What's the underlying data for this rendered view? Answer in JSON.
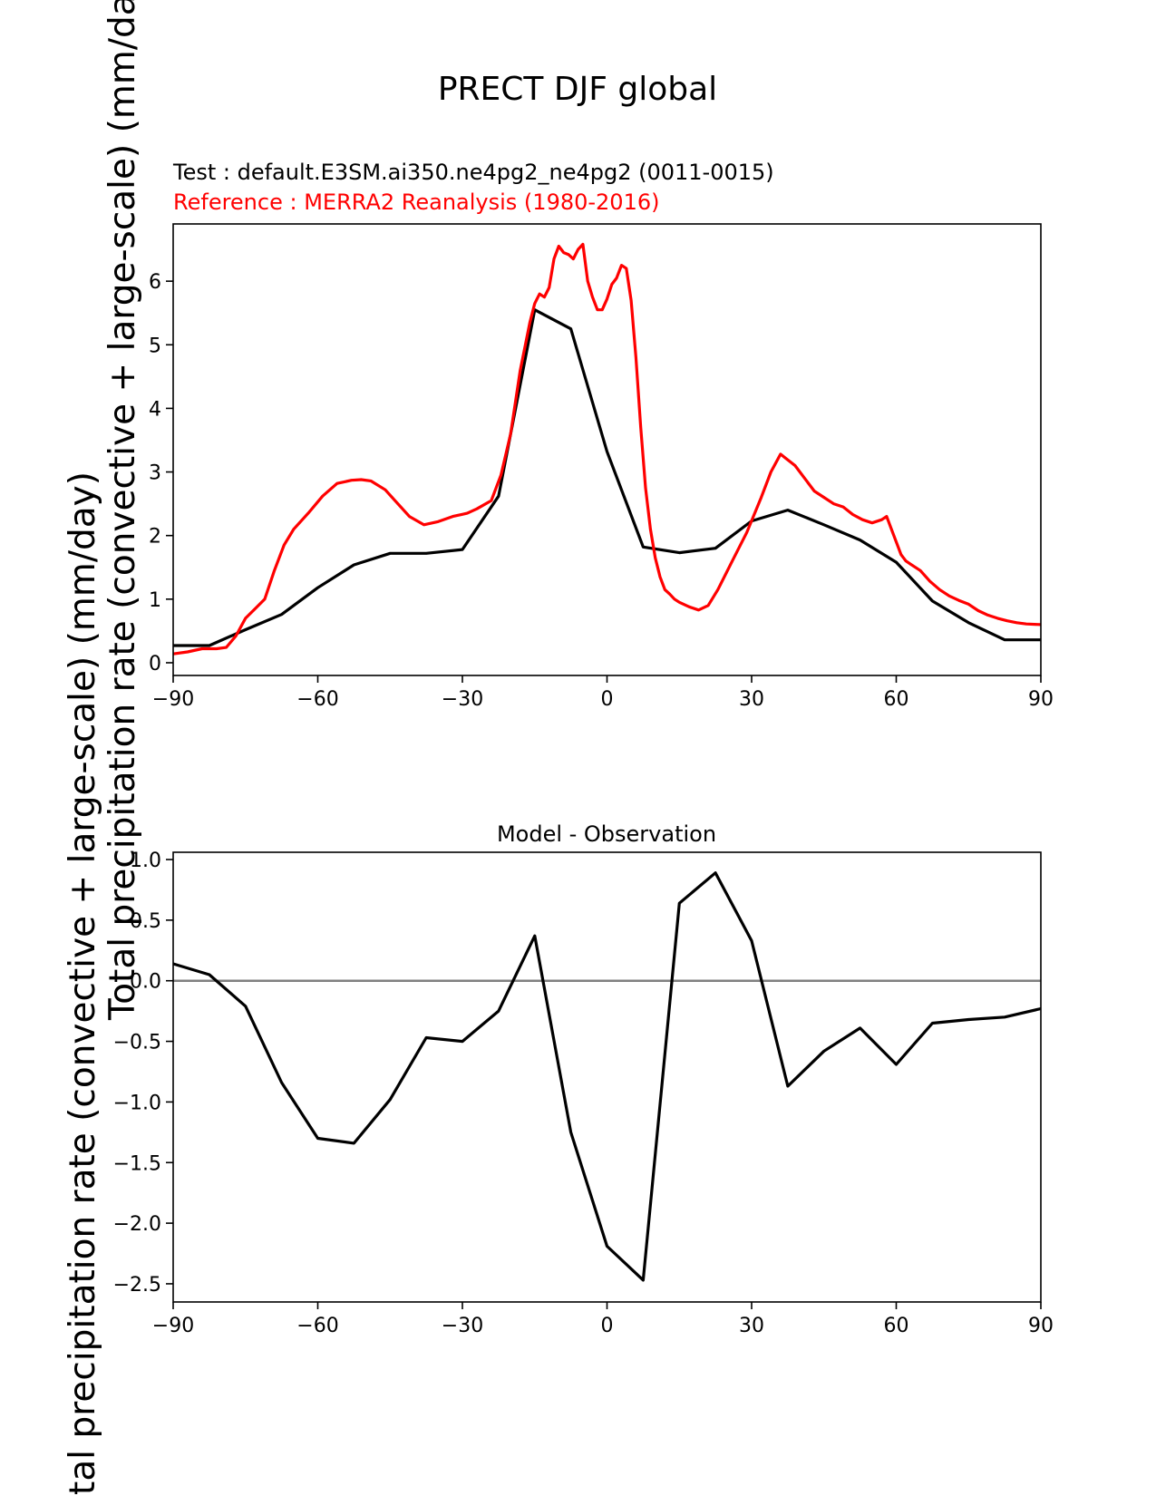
{
  "figure_title": "PRECT DJF global",
  "chart_data": [
    {
      "type": "line",
      "panel": "top",
      "title": "",
      "test_label": "Test : default.E3SM.ai350.ne4pg2_ne4pg2 (0011-0015)",
      "reference_label": "Reference : MERRA2 Reanalysis (1980-2016)",
      "ylabel": "Total precipitation rate (convective + large-scale) (mm/day)",
      "xlabel": "",
      "xlim": [
        -90,
        90
      ],
      "ylim": [
        -0.2,
        6.9
      ],
      "xticks": [
        -90,
        -60,
        -30,
        0,
        30,
        60,
        90
      ],
      "yticks": [
        0,
        1,
        2,
        3,
        4,
        5,
        6
      ],
      "xtick_labels": [
        "−90",
        "−60",
        "−30",
        "0",
        "30",
        "60",
        "90"
      ],
      "ytick_labels": [
        "0",
        "1",
        "2",
        "3",
        "4",
        "5",
        "6"
      ],
      "series": [
        {
          "name": "Test",
          "color": "#000000",
          "x": [
            -90,
            -82.5,
            -75,
            -67.5,
            -60,
            -52.5,
            -45,
            -37.5,
            -30,
            -22.5,
            -15,
            -7.5,
            0,
            7.5,
            15,
            22.5,
            30,
            37.5,
            45,
            52.5,
            60,
            67.5,
            75,
            82.5,
            90
          ],
          "y": [
            0.27,
            0.27,
            0.52,
            0.76,
            1.18,
            1.54,
            1.72,
            1.72,
            1.78,
            2.62,
            5.55,
            5.25,
            3.32,
            1.82,
            1.73,
            1.8,
            2.23,
            2.4,
            2.17,
            1.93,
            1.58,
            0.97,
            0.63,
            0.36,
            0.36
          ]
        },
        {
          "name": "Reference",
          "color": "#ff0000",
          "x": [
            -90,
            -87,
            -84,
            -81,
            -79,
            -77,
            -75,
            -73,
            -71,
            -69,
            -67,
            -65,
            -62,
            -59,
            -56,
            -53,
            -51,
            -49,
            -46,
            -44,
            -41,
            -38,
            -35,
            -32,
            -29,
            -27,
            -24,
            -22,
            -20,
            -18,
            -16,
            -15,
            -14,
            -13,
            -12,
            -11,
            -10,
            -9,
            -8,
            -7,
            -6,
            -5,
            -4,
            -3,
            -2,
            -1,
            0,
            1,
            2,
            3,
            4,
            5,
            6,
            7,
            8,
            9,
            10,
            11,
            12,
            13,
            14,
            15,
            17,
            19,
            21,
            23,
            26,
            29,
            32,
            34,
            36,
            37,
            39,
            41,
            43,
            45,
            47,
            49,
            51,
            53,
            55,
            57,
            58,
            59,
            60,
            61,
            62,
            63,
            65,
            67,
            69,
            71,
            73,
            75,
            77,
            79,
            81,
            83,
            85,
            87,
            90
          ],
          "y": [
            0.14,
            0.17,
            0.22,
            0.22,
            0.24,
            0.42,
            0.7,
            0.85,
            1.0,
            1.45,
            1.85,
            2.1,
            2.35,
            2.62,
            2.82,
            2.87,
            2.88,
            2.86,
            2.72,
            2.55,
            2.3,
            2.17,
            2.22,
            2.3,
            2.35,
            2.42,
            2.55,
            2.95,
            3.6,
            4.6,
            5.35,
            5.65,
            5.8,
            5.75,
            5.9,
            6.35,
            6.55,
            6.45,
            6.42,
            6.35,
            6.5,
            6.58,
            6.0,
            5.75,
            5.55,
            5.55,
            5.72,
            5.95,
            6.05,
            6.25,
            6.2,
            5.7,
            4.8,
            3.7,
            2.75,
            2.1,
            1.65,
            1.35,
            1.15,
            1.08,
            1.0,
            0.95,
            0.88,
            0.83,
            0.9,
            1.15,
            1.6,
            2.05,
            2.6,
            3.0,
            3.28,
            3.22,
            3.1,
            2.9,
            2.7,
            2.6,
            2.5,
            2.45,
            2.33,
            2.25,
            2.2,
            2.25,
            2.3,
            2.1,
            1.9,
            1.7,
            1.6,
            1.55,
            1.45,
            1.28,
            1.15,
            1.05,
            0.98,
            0.92,
            0.82,
            0.75,
            0.7,
            0.66,
            0.63,
            0.61,
            0.6
          ]
        }
      ]
    },
    {
      "type": "line",
      "panel": "bottom",
      "title": "Model - Observation",
      "ylabel": "Total precipitation rate (convective + large-scale) (mm/day)",
      "xlabel": "",
      "xlim": [
        -90,
        90
      ],
      "ylim": [
        -2.65,
        1.06
      ],
      "xticks": [
        -90,
        -60,
        -30,
        0,
        30,
        60,
        90
      ],
      "yticks": [
        1.0,
        0.5,
        0.0,
        -0.5,
        -1.0,
        -1.5,
        -2.0,
        -2.5
      ],
      "xtick_labels": [
        "−90",
        "−60",
        "−30",
        "0",
        "30",
        "60",
        "90"
      ],
      "ytick_labels": [
        "1.0",
        "0.5",
        "0.0",
        "−0.5",
        "−1.0",
        "−1.5",
        "−2.0",
        "−2.5"
      ],
      "zero_line_color": "#808080",
      "series": [
        {
          "name": "Model - Observation",
          "color": "#000000",
          "x": [
            -90,
            -82.5,
            -75,
            -67.5,
            -60,
            -52.5,
            -45,
            -37.5,
            -30,
            -22.5,
            -15,
            -7.5,
            0,
            7.5,
            15,
            22.5,
            30,
            37.5,
            45,
            52.5,
            60,
            67.5,
            75,
            82.5,
            90
          ],
          "y": [
            0.14,
            0.05,
            -0.21,
            -0.84,
            -1.3,
            -1.34,
            -0.98,
            -0.47,
            -0.5,
            -0.25,
            0.37,
            -1.25,
            -2.19,
            -2.47,
            0.64,
            0.89,
            0.33,
            -0.87,
            -0.58,
            -0.39,
            -0.69,
            -0.35,
            -0.32,
            -0.3,
            -0.23
          ]
        }
      ]
    }
  ]
}
